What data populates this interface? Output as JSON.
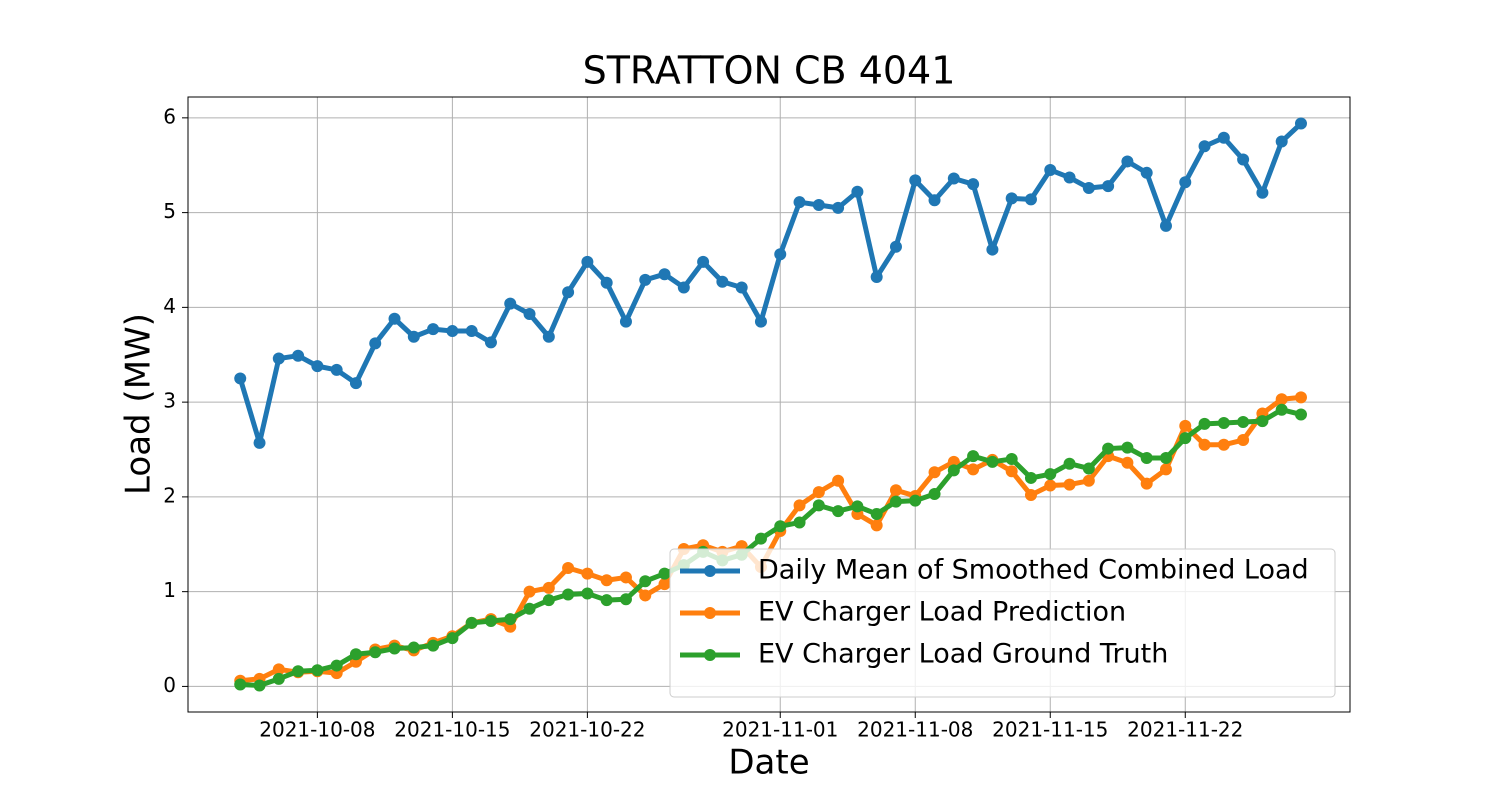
{
  "chart_data": {
    "type": "line",
    "title": "STRATTON CB 4041",
    "xlabel": "Date",
    "ylabel": "Load (MW)",
    "x": [
      "2021-10-04",
      "2021-10-05",
      "2021-10-06",
      "2021-10-07",
      "2021-10-08",
      "2021-10-09",
      "2021-10-10",
      "2021-10-11",
      "2021-10-12",
      "2021-10-13",
      "2021-10-14",
      "2021-10-15",
      "2021-10-16",
      "2021-10-17",
      "2021-10-18",
      "2021-10-19",
      "2021-10-20",
      "2021-10-21",
      "2021-10-22",
      "2021-10-23",
      "2021-10-24",
      "2021-10-25",
      "2021-10-26",
      "2021-10-27",
      "2021-10-28",
      "2021-10-29",
      "2021-10-30",
      "2021-10-31",
      "2021-11-01",
      "2021-11-02",
      "2021-11-03",
      "2021-11-04",
      "2021-11-05",
      "2021-11-06",
      "2021-11-07",
      "2021-11-08",
      "2021-11-09",
      "2021-11-10",
      "2021-11-11",
      "2021-11-12",
      "2021-11-13",
      "2021-11-14",
      "2021-11-15",
      "2021-11-16",
      "2021-11-17",
      "2021-11-18",
      "2021-11-19",
      "2021-11-20",
      "2021-11-21",
      "2021-11-22",
      "2021-11-23",
      "2021-11-24",
      "2021-11-25",
      "2021-11-26",
      "2021-11-27",
      "2021-11-28"
    ],
    "series": [
      {
        "name": "Daily Mean of Smoothed Combined Load",
        "color": "#1f77b4",
        "values": [
          3.25,
          2.57,
          3.46,
          3.49,
          3.38,
          3.34,
          3.2,
          3.62,
          3.88,
          3.69,
          3.77,
          3.75,
          3.75,
          3.63,
          4.04,
          3.93,
          3.69,
          4.16,
          4.48,
          4.26,
          3.85,
          4.29,
          4.35,
          4.21,
          4.48,
          4.27,
          4.21,
          3.85,
          4.56,
          5.11,
          5.08,
          5.05,
          5.22,
          4.32,
          4.64,
          5.34,
          5.13,
          5.36,
          5.3,
          4.61,
          5.15,
          5.14,
          5.45,
          5.37,
          5.26,
          5.28,
          5.54,
          5.42,
          4.86,
          5.32,
          5.7,
          5.79,
          5.56,
          5.21,
          5.75,
          5.94
        ]
      },
      {
        "name": "EV Charger Load Prediction",
        "color": "#ff7f0e",
        "values": [
          0.06,
          0.08,
          0.18,
          0.15,
          0.16,
          0.14,
          0.26,
          0.39,
          0.43,
          0.38,
          0.46,
          0.53,
          0.67,
          0.71,
          0.63,
          1.0,
          1.04,
          1.25,
          1.19,
          1.12,
          1.15,
          0.96,
          1.08,
          1.45,
          1.49,
          1.42,
          1.48,
          1.26,
          1.64,
          1.91,
          2.05,
          2.17,
          1.82,
          1.7,
          2.07,
          2.01,
          2.26,
          2.37,
          2.29,
          2.39,
          2.27,
          2.02,
          2.12,
          2.13,
          2.17,
          2.43,
          2.36,
          2.14,
          2.29,
          2.75,
          2.55,
          2.55,
          2.6,
          2.88,
          3.03,
          3.05
        ]
      },
      {
        "name": "EV Charger Load Ground Truth",
        "color": "#2ca02c",
        "values": [
          0.02,
          0.01,
          0.08,
          0.16,
          0.17,
          0.22,
          0.34,
          0.36,
          0.4,
          0.41,
          0.43,
          0.51,
          0.67,
          0.69,
          0.71,
          0.82,
          0.91,
          0.97,
          0.98,
          0.91,
          0.92,
          1.11,
          1.19,
          1.28,
          1.42,
          1.33,
          1.39,
          1.56,
          1.69,
          1.73,
          1.91,
          1.85,
          1.9,
          1.82,
          1.95,
          1.96,
          2.03,
          2.28,
          2.43,
          2.37,
          2.4,
          2.2,
          2.24,
          2.35,
          2.3,
          2.51,
          2.52,
          2.41,
          2.41,
          2.62,
          2.77,
          2.78,
          2.79,
          2.8,
          2.92,
          2.87
        ]
      }
    ],
    "xlim": [
      "2021-10-01T07:00",
      "2021-11-30T13:00"
    ],
    "xticks": [
      "2021-10-08",
      "2021-10-15",
      "2021-10-22",
      "2021-11-01",
      "2021-11-08",
      "2021-11-15",
      "2021-11-22"
    ],
    "ylim": [
      -0.27,
      6.22
    ],
    "yticks": [
      0,
      1,
      2,
      3,
      4,
      5,
      6
    ],
    "grid": true,
    "legend": "lower right"
  }
}
